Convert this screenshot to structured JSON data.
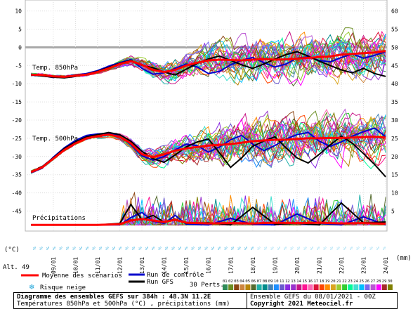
{
  "chart_data": {
    "type": "line",
    "x_tick_labels": [
      "09/01",
      "10/01",
      "11/01",
      "12/01",
      "13/01",
      "14/01",
      "15/01",
      "16/01",
      "17/01",
      "18/01",
      "19/01",
      "20/01",
      "21/01",
      "22/01",
      "23/01",
      "24/01"
    ],
    "y_left_ticks": [
      "10",
      "5",
      "0",
      "-5",
      "-10",
      "-15",
      "-20",
      "-25",
      "-30",
      "-35",
      "-40",
      "-45"
    ],
    "y_left_unit": "(°C)",
    "y_left_range": [
      -45,
      10
    ],
    "y_right_ticks": [
      "60",
      "55",
      "50",
      "45",
      "40",
      "35",
      "30",
      "25",
      "20",
      "15",
      "10",
      "5",
      "0"
    ],
    "y_right_unit": "(mm)",
    "y_right_range": [
      0,
      60
    ],
    "grid": true,
    "panels": [
      {
        "label": "Temp. 850hPa",
        "reference_line": 0,
        "ensemble_members": 30,
        "series": [
          {
            "name": "Moyenne des scénarios",
            "color": "#ff0000",
            "x": [
              0,
              0.5,
              1,
              1.5,
              2,
              2.5,
              3,
              3.5,
              4,
              4.5,
              5,
              5.5,
              6,
              6.5,
              7,
              7.5,
              8,
              8.5,
              9,
              9.5,
              10,
              10.5,
              11,
              11.5,
              12,
              12.5,
              13,
              13.5,
              14,
              14.5,
              15,
              15.5,
              16
            ],
            "values": [
              -7.5,
              -7.6,
              -8.0,
              -8.1,
              -7.8,
              -7.5,
              -6.8,
              -5.8,
              -4.6,
              -3.8,
              -4.8,
              -6.2,
              -6.8,
              -6.2,
              -5.0,
              -4.2,
              -3.6,
              -3.4,
              -3.5,
              -3.6,
              -3.4,
              -3.2,
              -3.4,
              -3.3,
              -3.1,
              -2.9,
              -2.7,
              -2.5,
              -2.0,
              -1.8,
              -1.6,
              -1.4,
              -1.0
            ]
          },
          {
            "name": "Run de contrôle",
            "color": "#0000cc",
            "x": [
              0,
              0.5,
              1,
              1.5,
              2,
              2.5,
              3,
              3.5,
              4,
              4.5,
              5,
              5.5,
              6,
              6.5,
              7,
              7.5,
              8,
              8.5,
              9,
              9.5,
              10,
              10.5,
              11,
              11.5,
              12,
              12.5,
              13,
              13.5,
              14,
              14.5,
              15,
              15.5,
              16
            ],
            "values": [
              -7.4,
              -7.8,
              -8.3,
              -8.0,
              -7.6,
              -7.2,
              -6.4,
              -5.2,
              -4.2,
              -3.4,
              -5.8,
              -7.4,
              -7.0,
              -5.8,
              -4.6,
              -5.4,
              -7.2,
              -6.6,
              -4.8,
              -3.6,
              -2.8,
              -4.2,
              -5.4,
              -4.6,
              -3.0,
              -2.6,
              -3.6,
              -4.0,
              -2.8,
              -1.8,
              -3.0,
              -2.2,
              -1.2
            ]
          },
          {
            "name": "Run GFS",
            "color": "#000000",
            "x": [
              0,
              0.5,
              1,
              1.5,
              2,
              2.5,
              3,
              3.5,
              4,
              4.5,
              5,
              5.5,
              6,
              6.5,
              7,
              7.5,
              8,
              8.5,
              9,
              9.5,
              10,
              10.5,
              11,
              11.5,
              12,
              12.5,
              13,
              13.5,
              14,
              14.5,
              15,
              15.5,
              16
            ],
            "values": [
              -7.6,
              -7.9,
              -8.2,
              -8.4,
              -8.0,
              -7.4,
              -6.6,
              -5.5,
              -4.4,
              -3.6,
              -5.0,
              -5.6,
              -6.8,
              -7.6,
              -6.0,
              -4.4,
              -3.2,
              -2.4,
              -3.6,
              -4.8,
              -5.8,
              -4.6,
              -3.2,
              -2.0,
              -1.2,
              -2.4,
              -3.8,
              -5.0,
              -6.2,
              -7.0,
              -5.8,
              -7.2,
              -8.0
            ]
          }
        ],
        "ensemble_envelope": {
          "anchor_level": -7.6,
          "spread_start": 0.8,
          "spread_end": 8.0
        }
      },
      {
        "label": "Temp. 500hPa",
        "ensemble_members": 30,
        "series": [
          {
            "name": "Moyenne des scénarios",
            "color": "#ff0000",
            "x": [
              0,
              0.5,
              1,
              1.5,
              2,
              2.5,
              3,
              3.5,
              4,
              4.5,
              5,
              5.5,
              6,
              6.5,
              7,
              7.5,
              8,
              8.5,
              9,
              9.5,
              10,
              10.5,
              11,
              11.5,
              12,
              12.5,
              13,
              13.5,
              14,
              14.5,
              15,
              15.5,
              16
            ],
            "values": [
              -34.3,
              -33.0,
              -30.6,
              -28.2,
              -26.4,
              -25.0,
              -24.4,
              -24.0,
              -24.6,
              -26.4,
              -29.4,
              -30.2,
              -29.4,
              -28.4,
              -27.8,
              -27.4,
              -27.0,
              -26.8,
              -26.6,
              -26.2,
              -25.8,
              -25.6,
              -25.4,
              -25.4,
              -25.2,
              -25.0,
              -25.0,
              -24.9,
              -24.9,
              -24.8,
              -24.7,
              -24.6,
              -24.8
            ]
          },
          {
            "name": "Run de contrôle",
            "color": "#0000cc",
            "x": [
              0,
              0.5,
              1,
              1.5,
              2,
              2.5,
              3,
              3.5,
              4,
              4.5,
              5,
              5.5,
              6,
              6.5,
              7,
              7.5,
              8,
              8.5,
              9,
              9.5,
              10,
              10.5,
              11,
              11.5,
              12,
              12.5,
              13,
              13.5,
              14,
              14.5,
              15,
              15.5,
              16
            ],
            "values": [
              -34.5,
              -33.2,
              -30.2,
              -27.6,
              -25.6,
              -24.2,
              -23.8,
              -23.6,
              -24.4,
              -26.8,
              -29.8,
              -31.0,
              -30.0,
              -28.2,
              -26.6,
              -27.0,
              -28.8,
              -27.4,
              -25.4,
              -24.2,
              -26.6,
              -28.4,
              -27.0,
              -25.2,
              -24.0,
              -23.4,
              -25.8,
              -27.2,
              -26.0,
              -24.4,
              -23.2,
              -22.2,
              -24.6
            ]
          },
          {
            "name": "Run GFS",
            "color": "#000000",
            "x": [
              0,
              0.5,
              1,
              1.5,
              2,
              2.5,
              3,
              3.5,
              4,
              4.5,
              5,
              5.5,
              6,
              6.5,
              7,
              7.5,
              8,
              8.5,
              9,
              9.5,
              10,
              10.5,
              11,
              11.5,
              12,
              12.5,
              13,
              13.5,
              14,
              14.5,
              15,
              15.5,
              16
            ],
            "values": [
              -34.2,
              -32.8,
              -30.4,
              -27.8,
              -26.0,
              -24.6,
              -24.0,
              -23.4,
              -24.0,
              -25.8,
              -28.6,
              -30.6,
              -31.6,
              -29.6,
              -27.4,
              -26.0,
              -25.2,
              -29.0,
              -33.0,
              -30.4,
              -27.2,
              -25.8,
              -24.6,
              -27.6,
              -30.4,
              -31.8,
              -29.4,
              -26.8,
              -24.4,
              -26.4,
              -29.2,
              -32.2,
              -35.6
            ]
          }
        ],
        "ensemble_envelope": {
          "anchor_level": -34.3,
          "spread_start": 0.8,
          "spread_end": 8.5
        }
      },
      {
        "label": "Précipitations",
        "axis": "right",
        "ensemble_members": 30,
        "series": [
          {
            "name": "Moyenne des scénarios",
            "color": "#ff0000",
            "x": [
              0,
              1,
              2,
              3,
              4,
              4.5,
              5,
              5.5,
              6,
              6.5,
              7,
              8,
              9,
              10,
              11,
              12,
              13,
              14,
              15,
              16
            ],
            "values": [
              0,
              0,
              0,
              0,
              0.2,
              1.2,
              1.6,
              1.2,
              0.8,
              1.4,
              0.6,
              0.4,
              0.5,
              0.4,
              0.6,
              0.5,
              0.6,
              0.4,
              0.5,
              0.3
            ]
          },
          {
            "name": "Run de contrôle",
            "color": "#0000cc",
            "x": [
              0,
              1,
              2,
              3,
              4,
              4.5,
              5,
              5.5,
              6,
              6.5,
              7,
              8,
              9,
              10,
              11,
              12,
              13,
              14,
              15,
              16
            ],
            "values": [
              0,
              0,
              0,
              0,
              0,
              2.0,
              3.4,
              1.0,
              0.4,
              2.6,
              0.2,
              0,
              1.8,
              0.2,
              0,
              3.0,
              0.4,
              0,
              2.2,
              0
            ]
          },
          {
            "name": "Run GFS",
            "color": "#000000",
            "x": [
              0,
              1,
              2,
              3,
              4,
              4.5,
              5,
              5.5,
              6,
              6.5,
              7,
              8,
              9,
              10,
              11,
              12,
              13,
              14,
              15,
              16
            ],
            "values": [
              0,
              0,
              0,
              0,
              0.4,
              5.6,
              1.4,
              2.6,
              0.8,
              1.6,
              0.4,
              0.6,
              0,
              4.8,
              0.2,
              0.4,
              0,
              6.0,
              0.6,
              0.8
            ]
          }
        ],
        "ensemble_envelope": {
          "anchor_level": 0,
          "max_spike": 9
        }
      }
    ]
  },
  "left_marker_label": "Alt. 49",
  "legend": {
    "mean_label": "Moyenne des scénarios",
    "control_label": "Run de contrôle",
    "gfs_label": "Run GFS",
    "snow_label": "Risque neige",
    "perts_label": "30 Perts.",
    "mean_color": "#ff0000",
    "control_color": "#0000cc",
    "gfs_color": "#000000",
    "snow_icon": "snowflake-icon",
    "pert_keys": [
      {
        "label": "01",
        "color": "#2e8b57"
      },
      {
        "label": "02",
        "color": "#6b8e23"
      },
      {
        "label": "03",
        "color": "#8b4513"
      },
      {
        "label": "04",
        "color": "#cd853f"
      },
      {
        "label": "05",
        "color": "#b8860b"
      },
      {
        "label": "06",
        "color": "#556b2f"
      },
      {
        "label": "07",
        "color": "#20b2aa"
      },
      {
        "label": "08",
        "color": "#008b8b"
      },
      {
        "label": "09",
        "color": "#4682b4"
      },
      {
        "label": "10",
        "color": "#1e90ff"
      },
      {
        "label": "11",
        "color": "#6a5acd"
      },
      {
        "label": "12",
        "color": "#8a2be2"
      },
      {
        "label": "13",
        "color": "#9932cc"
      },
      {
        "label": "14",
        "color": "#c71585"
      },
      {
        "label": "15",
        "color": "#ff1493"
      },
      {
        "label": "16",
        "color": "#ff69b4"
      },
      {
        "label": "17",
        "color": "#dc143c"
      },
      {
        "label": "18",
        "color": "#ff4500"
      },
      {
        "label": "19",
        "color": "#ff8c00"
      },
      {
        "label": "20",
        "color": "#daa520"
      },
      {
        "label": "21",
        "color": "#9acd32"
      },
      {
        "label": "22",
        "color": "#32cd32"
      },
      {
        "label": "23",
        "color": "#00fa9a"
      },
      {
        "label": "24",
        "color": "#40e0d0"
      },
      {
        "label": "25",
        "color": "#00bfff"
      },
      {
        "label": "26",
        "color": "#7b68ee"
      },
      {
        "label": "27",
        "color": "#ba55d3"
      },
      {
        "label": "28",
        "color": "#ff00ff"
      },
      {
        "label": "29",
        "color": "#a52a2a"
      },
      {
        "label": "30",
        "color": "#808000"
      }
    ]
  },
  "caption": {
    "title": "Diagramme des ensembles GEFS sur 384h : 48.3N 11.2E",
    "subtitle": "Températures 850hPa et 500hPa (°C) , précipitations (mm)",
    "run_info": "Ensemble GEFS du 08/01/2021 - 00Z",
    "copyright": "Copyright 2021 Meteociel.fr"
  }
}
